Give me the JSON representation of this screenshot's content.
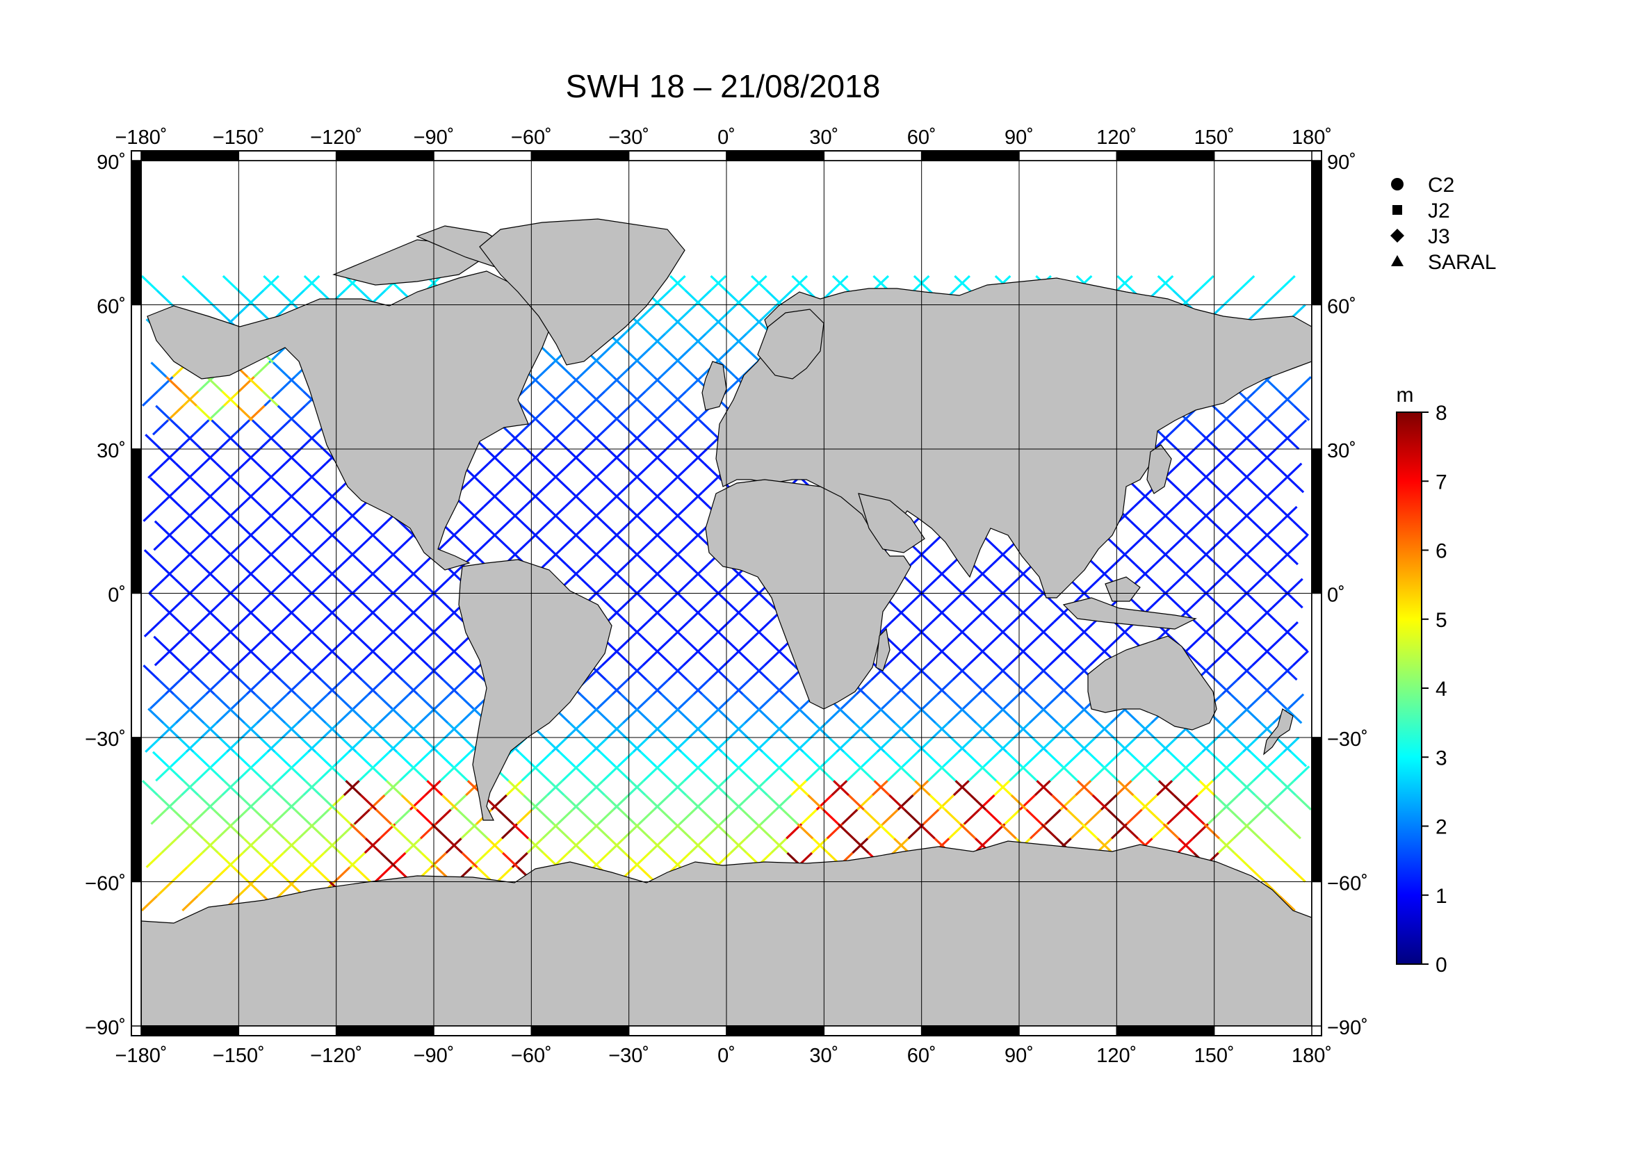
{
  "title": "SWH 18 – 21/08/2018",
  "map": {
    "projection": "equirectangular",
    "lon_range": [
      -180,
      180
    ],
    "lat_range": [
      -90,
      90
    ],
    "lon_ticks": [
      -180,
      -150,
      -120,
      -90,
      -60,
      -30,
      0,
      30,
      60,
      90,
      120,
      150,
      180
    ],
    "lat_ticks": [
      90,
      60,
      30,
      0,
      -30,
      -60,
      -90
    ],
    "lon_tick_labels": [
      "−180˚",
      "−150˚",
      "−120˚",
      "−90˚",
      "−60˚",
      "−30˚",
      "0˚",
      "30˚",
      "60˚",
      "90˚",
      "120˚",
      "150˚",
      "180˚"
    ],
    "lat_tick_labels": [
      "90˚",
      "60˚",
      "30˚",
      "0˚",
      "−30˚",
      "−60˚",
      "−90˚"
    ],
    "grid": true,
    "land_color": "#c0c0c0",
    "ocean_color": "#ffffff",
    "variable": "Significant wave height (SWH)",
    "track_data_coverage": {
      "lat_min": -66,
      "lat_max": 66
    },
    "high_swh_regions": [
      {
        "lon": [
          20,
          150
        ],
        "lat": [
          -60,
          -38
        ],
        "swh_m": [
          5,
          8
        ]
      },
      {
        "lon": [
          -120,
          -60
        ],
        "lat": [
          -62,
          -40
        ],
        "swh_m": [
          4,
          8
        ]
      },
      {
        "lon": [
          -170,
          -140
        ],
        "lat": [
          35,
          55
        ],
        "swh_m": [
          4,
          6
        ]
      }
    ]
  },
  "legend": {
    "placement": "top-right",
    "items": [
      {
        "label": "C2",
        "marker": "circle"
      },
      {
        "label": "J2",
        "marker": "square"
      },
      {
        "label": "J3",
        "marker": "diamond"
      },
      {
        "label": "SARAL",
        "marker": "triangle"
      }
    ]
  },
  "colorbar": {
    "unit": "m",
    "min": 0,
    "max": 8,
    "ticks": [
      "0",
      "1",
      "2",
      "3",
      "4",
      "5",
      "6",
      "7",
      "8"
    ],
    "colormap": "jet",
    "colors": [
      "#00007f",
      "#0000ff",
      "#007fff",
      "#00ffff",
      "#7fff7f",
      "#ffff00",
      "#ff7f00",
      "#ff0000",
      "#7f0000"
    ]
  }
}
